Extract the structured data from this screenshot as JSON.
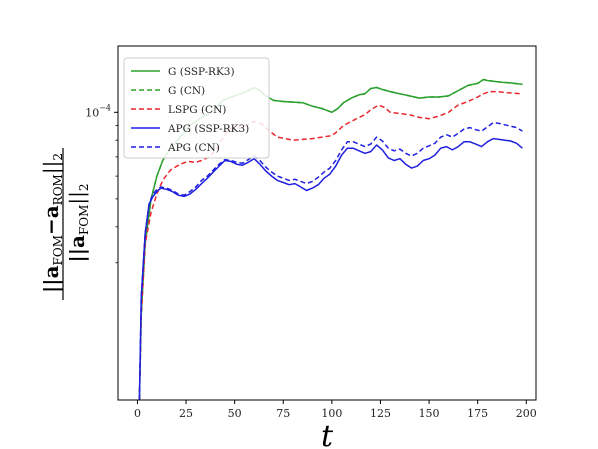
{
  "chart_data": {
    "type": "line",
    "xlabel": "t",
    "ylabel": {
      "numerator_prefix": "||a",
      "numerator_sub1": "FOM",
      "numerator_mid": "−a",
      "numerator_sub2": "ROM",
      "numerator_suffix": "||",
      "numerator_norm": "2",
      "denominator_prefix": "||a",
      "denominator_sub": "FOM",
      "denominator_suffix": "||",
      "denominator_norm": "2"
    },
    "xlim": [
      -10,
      205
    ],
    "ylim": [
      1e-05,
      0.00017
    ],
    "yscale": "log",
    "grid": false,
    "legend_position": "top-left",
    "x_ticks": [
      0,
      25,
      50,
      75,
      100,
      125,
      150,
      175,
      200
    ],
    "y_major_tick": {
      "value": 0.0001,
      "label_base": "10",
      "label_exp": "−4"
    },
    "y_minor_ticks": [
      3e-05,
      4e-05,
      5e-05,
      6e-05,
      7e-05,
      8e-05,
      9e-05
    ],
    "series": [
      {
        "name": "G (SSP-RK3)",
        "color": "#2ca02c",
        "dash": "solid",
        "points": [
          [
            1,
            1e-05
          ],
          [
            2,
            2e-05
          ],
          [
            4,
            3.5e-05
          ],
          [
            7,
            5e-05
          ],
          [
            10,
            6e-05
          ],
          [
            13,
            6.8e-05
          ],
          [
            17,
            7.5e-05
          ],
          [
            22,
            8.2e-05
          ],
          [
            27,
            9e-05
          ],
          [
            32,
            9.5e-05
          ],
          [
            37,
            9.9e-05
          ],
          [
            41,
            0.000105
          ],
          [
            44,
            0.00011
          ],
          [
            47,
            0.000112
          ],
          [
            50,
            0.000114
          ],
          [
            53,
            0.000116
          ],
          [
            56,
            0.000118
          ],
          [
            60,
            0.000122
          ],
          [
            63,
            0.000119
          ],
          [
            66,
            0.000114
          ],
          [
            70,
            0.00011
          ],
          [
            75,
            0.000109
          ],
          [
            80,
            0.0001085
          ],
          [
            85,
            0.000108
          ],
          [
            90,
            0.000105
          ],
          [
            95,
            0.000103
          ],
          [
            100,
            0.0001
          ],
          [
            103,
            0.000103
          ],
          [
            106,
            0.000108
          ],
          [
            110,
            0.000112
          ],
          [
            114,
            0.000115
          ],
          [
            117,
            0.000116
          ],
          [
            120,
            0.000121
          ],
          [
            123,
            0.000122
          ],
          [
            126,
            0.00012
          ],
          [
            130,
            0.000118
          ],
          [
            135,
            0.000116
          ],
          [
            140,
            0.000114
          ],
          [
            145,
            0.000112
          ],
          [
            150,
            0.000113
          ],
          [
            155,
            0.000113
          ],
          [
            160,
            0.000114
          ],
          [
            165,
            0.000119
          ],
          [
            170,
            0.000124
          ],
          [
            175,
            0.000126
          ],
          [
            178,
            0.00013
          ],
          [
            180,
            0.000129
          ],
          [
            184,
            0.000128
          ],
          [
            188,
            0.000127
          ],
          [
            192,
            0.0001265
          ],
          [
            198,
            0.000125
          ]
        ]
      },
      {
        "name": "G (CN)",
        "color": "#2ca02c",
        "dash": "dashed",
        "points": [
          [
            1,
            1e-05
          ],
          [
            2,
            2e-05
          ],
          [
            4,
            3.5e-05
          ],
          [
            7,
            5e-05
          ],
          [
            10,
            6e-05
          ],
          [
            13,
            6.8e-05
          ],
          [
            17,
            7.5e-05
          ],
          [
            22,
            8.2e-05
          ],
          [
            27,
            9e-05
          ],
          [
            32,
            9.5e-05
          ],
          [
            37,
            9.9e-05
          ],
          [
            41,
            0.000105
          ],
          [
            44,
            0.00011
          ],
          [
            47,
            0.000112
          ],
          [
            50,
            0.000114
          ],
          [
            53,
            0.000116
          ],
          [
            56,
            0.000118
          ],
          [
            60,
            0.000122
          ],
          [
            63,
            0.000119
          ],
          [
            66,
            0.000114
          ],
          [
            70,
            0.00011
          ],
          [
            75,
            0.000109
          ],
          [
            80,
            0.0001085
          ],
          [
            85,
            0.000108
          ],
          [
            90,
            0.000105
          ],
          [
            95,
            0.000103
          ],
          [
            100,
            0.0001
          ],
          [
            103,
            0.000103
          ],
          [
            106,
            0.000108
          ],
          [
            110,
            0.000112
          ],
          [
            114,
            0.000115
          ],
          [
            117,
            0.000116
          ],
          [
            120,
            0.000121
          ],
          [
            123,
            0.000122
          ],
          [
            126,
            0.00012
          ],
          [
            130,
            0.000118
          ],
          [
            135,
            0.000116
          ],
          [
            140,
            0.000114
          ],
          [
            145,
            0.000112
          ],
          [
            150,
            0.000113
          ],
          [
            155,
            0.000113
          ],
          [
            160,
            0.000114
          ],
          [
            165,
            0.000119
          ],
          [
            170,
            0.000124
          ],
          [
            175,
            0.000126
          ],
          [
            178,
            0.00013
          ],
          [
            180,
            0.000129
          ],
          [
            184,
            0.000128
          ],
          [
            188,
            0.000127
          ],
          [
            192,
            0.0001265
          ],
          [
            198,
            0.000125
          ]
        ]
      },
      {
        "name": "LSPG (CN)",
        "color": "#e8262b",
        "dash": "dashed",
        "points": [
          [
            1,
            1e-05
          ],
          [
            2,
            2e-05
          ],
          [
            4,
            3.5e-05
          ],
          [
            7,
            4.5e-05
          ],
          [
            10,
            5.2e-05
          ],
          [
            13,
            5.8e-05
          ],
          [
            17,
            6.3e-05
          ],
          [
            22,
            6.6e-05
          ],
          [
            26,
            6.75e-05
          ],
          [
            30,
            6.7e-05
          ],
          [
            33,
            6.8e-05
          ],
          [
            37,
            7e-05
          ],
          [
            41,
            7.5e-05
          ],
          [
            44,
            8.2e-05
          ],
          [
            47,
            8.7e-05
          ],
          [
            50,
            8.9e-05
          ],
          [
            53,
            8.8e-05
          ],
          [
            56,
            9e-05
          ],
          [
            60,
            9.3e-05
          ],
          [
            64,
            9.1e-05
          ],
          [
            68,
            8.6e-05
          ],
          [
            72,
            8.2e-05
          ],
          [
            76,
            8.1e-05
          ],
          [
            80,
            8e-05
          ],
          [
            85,
            8.05e-05
          ],
          [
            90,
            8.1e-05
          ],
          [
            95,
            8.2e-05
          ],
          [
            100,
            8.3e-05
          ],
          [
            103,
            8.6e-05
          ],
          [
            106,
            9e-05
          ],
          [
            110,
            9.3e-05
          ],
          [
            114,
            9.6e-05
          ],
          [
            117,
            9.8e-05
          ],
          [
            120,
            0.000102
          ],
          [
            124,
            0.000106
          ],
          [
            127,
            0.000104
          ],
          [
            130,
            0.0001
          ],
          [
            135,
            9.9e-05
          ],
          [
            140,
            9.8e-05
          ],
          [
            145,
            9.6e-05
          ],
          [
            150,
            9.5e-05
          ],
          [
            155,
            9.7e-05
          ],
          [
            160,
            0.0001
          ],
          [
            165,
            0.000106
          ],
          [
            170,
            0.000109
          ],
          [
            175,
            0.000113
          ],
          [
            178,
            0.000116
          ],
          [
            181,
            0.000118
          ],
          [
            185,
            0.000118
          ],
          [
            190,
            0.000117
          ],
          [
            198,
            0.000116
          ]
        ]
      },
      {
        "name": "APG (SSP-RK3)",
        "color": "#1f1fe0",
        "dash": "solid",
        "points": [
          [
            1,
            1e-05
          ],
          [
            2,
            2.3e-05
          ],
          [
            4,
            3.8e-05
          ],
          [
            6,
            4.8e-05
          ],
          [
            8,
            5.1e-05
          ],
          [
            10,
            5.3e-05
          ],
          [
            12,
            5.45e-05
          ],
          [
            15,
            5.4e-05
          ],
          [
            18,
            5.3e-05
          ],
          [
            21,
            5.15e-05
          ],
          [
            24,
            5.1e-05
          ],
          [
            27,
            5.2e-05
          ],
          [
            30,
            5.4e-05
          ],
          [
            33,
            5.65e-05
          ],
          [
            36,
            5.9e-05
          ],
          [
            39,
            6.2e-05
          ],
          [
            42,
            6.5e-05
          ],
          [
            45,
            6.8e-05
          ],
          [
            48,
            6.75e-05
          ],
          [
            51,
            6.6e-05
          ],
          [
            54,
            6.55e-05
          ],
          [
            57,
            6.7e-05
          ],
          [
            60,
            6.9e-05
          ],
          [
            63,
            6.6e-05
          ],
          [
            66,
            6.25e-05
          ],
          [
            69,
            6e-05
          ],
          [
            72,
            5.8e-05
          ],
          [
            75,
            5.7e-05
          ],
          [
            78,
            5.6e-05
          ],
          [
            81,
            5.65e-05
          ],
          [
            84,
            5.5e-05
          ],
          [
            87,
            5.35e-05
          ],
          [
            90,
            5.45e-05
          ],
          [
            93,
            5.6e-05
          ],
          [
            96,
            5.9e-05
          ],
          [
            99,
            6.1e-05
          ],
          [
            102,
            6.5e-05
          ],
          [
            105,
            7.1e-05
          ],
          [
            108,
            7.5e-05
          ],
          [
            111,
            7.5e-05
          ],
          [
            114,
            7.35e-05
          ],
          [
            117,
            7.2e-05
          ],
          [
            120,
            7.3e-05
          ],
          [
            123,
            7.7e-05
          ],
          [
            126,
            7.4e-05
          ],
          [
            129,
            6.95e-05
          ],
          [
            132,
            6.8e-05
          ],
          [
            135,
            6.9e-05
          ],
          [
            138,
            6.6e-05
          ],
          [
            141,
            6.4e-05
          ],
          [
            144,
            6.5e-05
          ],
          [
            147,
            6.8e-05
          ],
          [
            150,
            6.9e-05
          ],
          [
            153,
            7.1e-05
          ],
          [
            156,
            7.5e-05
          ],
          [
            159,
            7.6e-05
          ],
          [
            162,
            7.4e-05
          ],
          [
            165,
            7.6e-05
          ],
          [
            168,
            7.9e-05
          ],
          [
            171,
            7.9e-05
          ],
          [
            174,
            7.75e-05
          ],
          [
            177,
            7.6e-05
          ],
          [
            180,
            7.9e-05
          ],
          [
            183,
            8.1e-05
          ],
          [
            186,
            8.05e-05
          ],
          [
            189,
            8e-05
          ],
          [
            192,
            7.95e-05
          ],
          [
            195,
            7.8e-05
          ],
          [
            198,
            7.5e-05
          ]
        ]
      },
      {
        "name": "APG (CN)",
        "color": "#1f1fe0",
        "dash": "dashed",
        "points": [
          [
            1,
            1e-05
          ],
          [
            2,
            2.3e-05
          ],
          [
            4,
            3.8e-05
          ],
          [
            6,
            4.8e-05
          ],
          [
            8,
            5.2e-05
          ],
          [
            10,
            5.4e-05
          ],
          [
            12,
            5.5e-05
          ],
          [
            15,
            5.45e-05
          ],
          [
            18,
            5.35e-05
          ],
          [
            21,
            5.2e-05
          ],
          [
            24,
            5.15e-05
          ],
          [
            27,
            5.3e-05
          ],
          [
            30,
            5.5e-05
          ],
          [
            33,
            5.8e-05
          ],
          [
            36,
            6e-05
          ],
          [
            39,
            6.3e-05
          ],
          [
            42,
            6.6e-05
          ],
          [
            45,
            6.85e-05
          ],
          [
            48,
            6.8e-05
          ],
          [
            51,
            6.7e-05
          ],
          [
            54,
            6.65e-05
          ],
          [
            57,
            6.85e-05
          ],
          [
            60,
            7.05e-05
          ],
          [
            63,
            6.8e-05
          ],
          [
            66,
            6.45e-05
          ],
          [
            69,
            6.2e-05
          ],
          [
            72,
            6e-05
          ],
          [
            75,
            5.9e-05
          ],
          [
            78,
            5.8e-05
          ],
          [
            81,
            5.85e-05
          ],
          [
            84,
            5.75e-05
          ],
          [
            87,
            5.65e-05
          ],
          [
            90,
            5.75e-05
          ],
          [
            93,
            5.95e-05
          ],
          [
            96,
            6.2e-05
          ],
          [
            99,
            6.4e-05
          ],
          [
            102,
            6.8e-05
          ],
          [
            105,
            7.4e-05
          ],
          [
            108,
            7.9e-05
          ],
          [
            111,
            7.9e-05
          ],
          [
            114,
            7.75e-05
          ],
          [
            117,
            7.6e-05
          ],
          [
            120,
            7.75e-05
          ],
          [
            123,
            8.2e-05
          ],
          [
            126,
            7.95e-05
          ],
          [
            129,
            7.5e-05
          ],
          [
            132,
            7.35e-05
          ],
          [
            135,
            7.45e-05
          ],
          [
            138,
            7.2e-05
          ],
          [
            141,
            7.05e-05
          ],
          [
            144,
            7.2e-05
          ],
          [
            147,
            7.5e-05
          ],
          [
            150,
            7.65e-05
          ],
          [
            153,
            7.8e-05
          ],
          [
            156,
            8.2e-05
          ],
          [
            159,
            8.35e-05
          ],
          [
            162,
            8.2e-05
          ],
          [
            165,
            8.45e-05
          ],
          [
            168,
            8.75e-05
          ],
          [
            171,
            8.85e-05
          ],
          [
            174,
            8.7e-05
          ],
          [
            177,
            8.6e-05
          ],
          [
            180,
            8.9e-05
          ],
          [
            183,
            9.2e-05
          ],
          [
            186,
            9.15e-05
          ],
          [
            189,
            9.05e-05
          ],
          [
            192,
            8.95e-05
          ],
          [
            195,
            8.85e-05
          ],
          [
            198,
            8.6e-05
          ]
        ]
      }
    ]
  }
}
